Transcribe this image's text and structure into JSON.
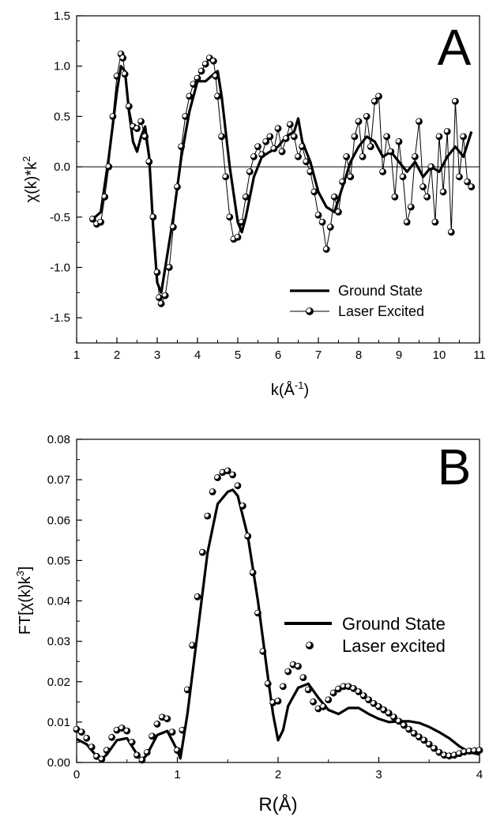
{
  "chart_data": [
    {
      "panel_label": "A",
      "type": "line",
      "xlabel": "k(Å",
      "xlabel_sup": "-1",
      "xlabel_tail": ")",
      "ylabel": "χ(k)*k",
      "ylabel_sup": "2",
      "xlim": [
        1,
        11
      ],
      "ylim": [
        -1.75,
        1.5
      ],
      "xticks": [
        "1",
        "2",
        "3",
        "4",
        "5",
        "6",
        "7",
        "8",
        "9",
        "10",
        "11"
      ],
      "yticks": [
        "-1.5",
        "-1.0",
        "-0.5",
        "0.0",
        "0.5",
        "1.0",
        "1.5"
      ],
      "zero_line": true,
      "legend_position": "bottom-right",
      "series": [
        {
          "name": "Ground State",
          "style": "thick-line",
          "x": [
            1.4,
            1.6,
            1.8,
            2.0,
            2.1,
            2.2,
            2.3,
            2.4,
            2.5,
            2.6,
            2.7,
            2.8,
            2.9,
            3.0,
            3.1,
            3.2,
            3.4,
            3.6,
            3.8,
            4.0,
            4.2,
            4.4,
            4.5,
            4.6,
            4.8,
            5.0,
            5.1,
            5.2,
            5.4,
            5.6,
            5.8,
            6.0,
            6.2,
            6.4,
            6.5,
            6.6,
            6.8,
            7.0,
            7.2,
            7.4,
            7.6,
            7.8,
            8.0,
            8.2,
            8.4,
            8.6,
            8.8,
            9.0,
            9.2,
            9.4,
            9.6,
            9.8,
            10.0,
            10.2,
            10.4,
            10.6,
            10.8
          ],
          "y": [
            -0.52,
            -0.45,
            0.1,
            0.75,
            1.0,
            0.95,
            0.55,
            0.25,
            0.15,
            0.3,
            0.4,
            0.1,
            -0.6,
            -1.15,
            -1.25,
            -1.0,
            -0.5,
            0.1,
            0.55,
            0.85,
            0.85,
            0.92,
            0.95,
            0.7,
            0.0,
            -0.55,
            -0.65,
            -0.5,
            -0.1,
            0.1,
            0.15,
            0.2,
            0.3,
            0.35,
            0.48,
            0.25,
            0.05,
            -0.25,
            -0.4,
            -0.45,
            -0.2,
            0.05,
            0.2,
            0.3,
            0.25,
            0.1,
            0.15,
            0.05,
            -0.05,
            0.05,
            -0.1,
            0.0,
            -0.05,
            0.1,
            0.2,
            0.1,
            0.35
          ]
        },
        {
          "name": "Laser Excited",
          "style": "line-with-markers",
          "x": [
            1.4,
            1.5,
            1.6,
            1.7,
            1.8,
            1.9,
            2.0,
            2.1,
            2.15,
            2.2,
            2.3,
            2.4,
            2.5,
            2.6,
            2.7,
            2.8,
            2.9,
            3.0,
            3.05,
            3.1,
            3.2,
            3.3,
            3.4,
            3.5,
            3.6,
            3.7,
            3.8,
            3.9,
            4.0,
            4.1,
            4.2,
            4.3,
            4.4,
            4.45,
            4.5,
            4.6,
            4.7,
            4.8,
            4.9,
            5.0,
            5.1,
            5.2,
            5.3,
            5.4,
            5.5,
            5.6,
            5.7,
            5.8,
            5.9,
            6.0,
            6.1,
            6.2,
            6.3,
            6.4,
            6.5,
            6.6,
            6.7,
            6.8,
            6.9,
            7.0,
            7.1,
            7.2,
            7.3,
            7.4,
            7.5,
            7.6,
            7.7,
            7.8,
            7.9,
            8.0,
            8.1,
            8.2,
            8.3,
            8.4,
            8.5,
            8.6,
            8.7,
            8.8,
            8.9,
            9.0,
            9.1,
            9.2,
            9.3,
            9.4,
            9.5,
            9.6,
            9.7,
            9.8,
            9.9,
            10.0,
            10.1,
            10.2,
            10.3,
            10.4,
            10.5,
            10.6,
            10.7,
            10.8
          ],
          "y": [
            -0.52,
            -0.57,
            -0.55,
            -0.3,
            0.0,
            0.5,
            0.9,
            1.12,
            1.08,
            0.92,
            0.6,
            0.4,
            0.38,
            0.45,
            0.3,
            0.05,
            -0.5,
            -1.05,
            -1.3,
            -1.36,
            -1.28,
            -1.0,
            -0.6,
            -0.2,
            0.2,
            0.5,
            0.7,
            0.82,
            0.88,
            0.95,
            1.02,
            1.08,
            1.05,
            0.9,
            0.7,
            0.3,
            -0.1,
            -0.5,
            -0.72,
            -0.7,
            -0.55,
            -0.3,
            -0.05,
            0.1,
            0.2,
            0.12,
            0.25,
            0.3,
            0.18,
            0.38,
            0.15,
            0.28,
            0.42,
            0.3,
            0.1,
            0.2,
            0.05,
            -0.05,
            -0.25,
            -0.48,
            -0.55,
            -0.82,
            -0.6,
            -0.3,
            -0.45,
            -0.15,
            0.1,
            -0.1,
            0.3,
            0.45,
            0.1,
            0.5,
            0.2,
            0.65,
            0.7,
            -0.05,
            0.3,
            0.15,
            -0.3,
            0.25,
            -0.1,
            -0.55,
            -0.4,
            0.1,
            0.45,
            -0.2,
            -0.3,
            0.0,
            -0.55,
            0.3,
            -0.25,
            0.35,
            -0.65,
            0.65,
            -0.1,
            0.3,
            -0.15,
            -0.2
          ]
        }
      ]
    },
    {
      "panel_label": "B",
      "type": "line",
      "xlabel": "R(Å)",
      "ylabel": "FT[χ(k)k",
      "ylabel_sup": "3",
      "ylabel_tail": "]",
      "xlim": [
        0,
        4
      ],
      "ylim": [
        0,
        0.08
      ],
      "xticks": [
        "0",
        "1",
        "2",
        "3",
        "4"
      ],
      "yticks": [
        "0.00",
        "0.01",
        "0.02",
        "0.03",
        "0.04",
        "0.05",
        "0.06",
        "0.07",
        "0.08"
      ],
      "legend_position": "right",
      "series": [
        {
          "name": "Ground State",
          "style": "thick-line",
          "x": [
            0.0,
            0.1,
            0.2,
            0.25,
            0.3,
            0.4,
            0.5,
            0.6,
            0.65,
            0.7,
            0.8,
            0.9,
            1.0,
            1.03,
            1.1,
            1.2,
            1.3,
            1.4,
            1.5,
            1.55,
            1.6,
            1.7,
            1.8,
            1.9,
            1.95,
            2.0,
            2.05,
            2.1,
            2.2,
            2.3,
            2.4,
            2.5,
            2.6,
            2.7,
            2.8,
            2.9,
            3.0,
            3.1,
            3.2,
            3.3,
            3.4,
            3.5,
            3.6,
            3.7,
            3.8,
            3.9,
            4.0
          ],
          "y": [
            0.0058,
            0.0045,
            0.0015,
            0.0008,
            0.002,
            0.0055,
            0.006,
            0.002,
            0.0005,
            0.002,
            0.0068,
            0.0078,
            0.003,
            0.001,
            0.012,
            0.032,
            0.052,
            0.064,
            0.067,
            0.0675,
            0.066,
            0.056,
            0.04,
            0.021,
            0.012,
            0.0055,
            0.008,
            0.014,
            0.0185,
            0.0195,
            0.016,
            0.013,
            0.012,
            0.0135,
            0.0135,
            0.012,
            0.0108,
            0.01,
            0.0102,
            0.0102,
            0.0098,
            0.0088,
            0.0075,
            0.006,
            0.004,
            0.0025,
            0.002
          ]
        },
        {
          "name": "Laser excited",
          "style": "markers",
          "x": [
            0.0,
            0.05,
            0.1,
            0.15,
            0.2,
            0.25,
            0.3,
            0.35,
            0.4,
            0.45,
            0.5,
            0.55,
            0.6,
            0.65,
            0.7,
            0.75,
            0.8,
            0.85,
            0.9,
            0.95,
            1.0,
            1.05,
            1.1,
            1.15,
            1.2,
            1.25,
            1.3,
            1.35,
            1.4,
            1.45,
            1.5,
            1.55,
            1.6,
            1.65,
            1.7,
            1.75,
            1.8,
            1.85,
            1.9,
            1.95,
            2.0,
            2.05,
            2.1,
            2.15,
            2.2,
            2.25,
            2.3,
            2.35,
            2.4,
            2.45,
            2.5,
            2.55,
            2.6,
            2.65,
            2.7,
            2.75,
            2.8,
            2.85,
            2.9,
            2.95,
            3.0,
            3.05,
            3.1,
            3.15,
            3.2,
            3.25,
            3.3,
            3.35,
            3.4,
            3.45,
            3.5,
            3.55,
            3.6,
            3.65,
            3.7,
            3.75,
            3.8,
            3.85,
            3.9,
            3.95,
            4.0
          ],
          "y": [
            0.0082,
            0.0075,
            0.006,
            0.0038,
            0.0015,
            0.0008,
            0.003,
            0.0062,
            0.008,
            0.0085,
            0.0078,
            0.005,
            0.0018,
            0.0006,
            0.0025,
            0.0065,
            0.0095,
            0.0112,
            0.0108,
            0.0075,
            0.003,
            0.008,
            0.018,
            0.029,
            0.041,
            0.052,
            0.061,
            0.067,
            0.0705,
            0.0718,
            0.0722,
            0.0712,
            0.0685,
            0.0635,
            0.056,
            0.047,
            0.037,
            0.0275,
            0.0195,
            0.0148,
            0.0152,
            0.0188,
            0.0225,
            0.0242,
            0.0238,
            0.021,
            0.018,
            0.015,
            0.0133,
            0.0138,
            0.0155,
            0.0172,
            0.0182,
            0.0188,
            0.0188,
            0.0183,
            0.0175,
            0.0165,
            0.0155,
            0.0146,
            0.0138,
            0.013,
            0.0122,
            0.0112,
            0.0102,
            0.0092,
            0.0082,
            0.0072,
            0.0063,
            0.0055,
            0.0045,
            0.0035,
            0.0025,
            0.0018,
            0.0016,
            0.0018,
            0.0022,
            0.0026,
            0.0028,
            0.0029,
            0.003
          ]
        }
      ]
    }
  ]
}
